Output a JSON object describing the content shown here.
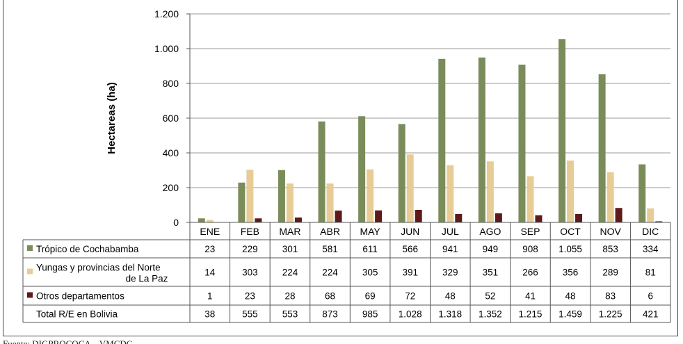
{
  "chart_data": {
    "type": "bar",
    "ylabel": "Hectareas (ha)",
    "ylim": [
      0,
      1200
    ],
    "yticks": [
      0,
      200,
      400,
      600,
      800,
      1000,
      1200
    ],
    "ytick_labels": [
      "0",
      "200",
      "400",
      "600",
      "800",
      "1.000",
      "1.200"
    ],
    "categories": [
      "ENE",
      "FEB",
      "MAR",
      "ABR",
      "MAY",
      "JUN",
      "JUL",
      "AGO",
      "SEP",
      "OCT",
      "NOV",
      "DIC"
    ],
    "grid": true,
    "legend": "data-table-left",
    "series": [
      {
        "name": "Trópico de Cochabamba",
        "color": "#7a8c5a",
        "values": [
          23,
          229,
          301,
          581,
          611,
          566,
          941,
          949,
          908,
          1055,
          853,
          334
        ],
        "labels": [
          "23",
          "229",
          "301",
          "581",
          "611",
          "566",
          "941",
          "949",
          "908",
          "1.055",
          "853",
          "334"
        ]
      },
      {
        "name": "Yungas y provincias del Norte de La Paz",
        "name_lines": [
          "Yungas y provincias del Norte",
          "de La Paz"
        ],
        "color": "#e8cc96",
        "values": [
          14,
          303,
          224,
          224,
          305,
          391,
          329,
          351,
          266,
          356,
          289,
          81
        ],
        "labels": [
          "14",
          "303",
          "224",
          "224",
          "305",
          "391",
          "329",
          "351",
          "266",
          "356",
          "289",
          "81"
        ]
      },
      {
        "name": "Otros departamentos",
        "color": "#5c1a1a",
        "values": [
          1,
          23,
          28,
          68,
          69,
          72,
          48,
          52,
          41,
          48,
          83,
          6
        ],
        "labels": [
          "1",
          "23",
          "28",
          "68",
          "69",
          "72",
          "48",
          "52",
          "41",
          "48",
          "83",
          "6"
        ]
      }
    ],
    "total_row": {
      "name": "Total R/E en Bolivia",
      "labels": [
        "38",
        "555",
        "553",
        "873",
        "985",
        "1.028",
        "1.318",
        "1.352",
        "1.215",
        "1.459",
        "1.225",
        "421"
      ]
    }
  },
  "footer_fragment": "Fuente: DIGPROCOCA – VMCDC"
}
